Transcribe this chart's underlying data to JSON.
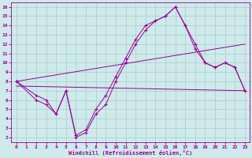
{
  "xlabel": "Windchill (Refroidissement éolien,°C)",
  "bg_color": "#ceeaea",
  "line_color": "#990099",
  "grid_color": "#aacccc",
  "xlim": [
    -0.5,
    23.5
  ],
  "ylim": [
    1.5,
    16.5
  ],
  "xticks": [
    0,
    1,
    2,
    3,
    4,
    5,
    6,
    7,
    8,
    9,
    10,
    11,
    12,
    13,
    14,
    15,
    16,
    17,
    18,
    19,
    20,
    21,
    22,
    23
  ],
  "yticks": [
    2,
    3,
    4,
    5,
    6,
    7,
    8,
    9,
    10,
    11,
    12,
    13,
    14,
    15,
    16
  ],
  "line1_x": [
    0,
    23
  ],
  "line1_y": [
    8,
    12
  ],
  "line2_x": [
    0,
    23
  ],
  "line2_y": [
    7.5,
    7.0
  ],
  "curve1_x": [
    0,
    2,
    3,
    4,
    5,
    6,
    7,
    8,
    9,
    10,
    11,
    12,
    13,
    14,
    15,
    16,
    17,
    18,
    19,
    20,
    21,
    22,
    23
  ],
  "curve1_y": [
    8,
    6.5,
    6.0,
    4.5,
    7.0,
    2.2,
    2.8,
    5.0,
    6.5,
    8.5,
    10.5,
    12.5,
    14.0,
    14.5,
    15.0,
    16.0,
    14.0,
    12.0,
    10.0,
    9.5,
    10.0,
    9.5,
    7.0
  ],
  "curve2_x": [
    0,
    2,
    3,
    4,
    5,
    6,
    7,
    8,
    9,
    10,
    11,
    12,
    13,
    14,
    15,
    16,
    17,
    18,
    19,
    20,
    21,
    22,
    23
  ],
  "curve2_y": [
    8,
    6.0,
    5.5,
    4.5,
    7.0,
    2.0,
    2.5,
    4.5,
    5.5,
    8.0,
    10.0,
    12.0,
    13.5,
    14.5,
    15.0,
    16.0,
    14.0,
    11.5,
    10.0,
    9.5,
    10.0,
    9.5,
    7.0
  ]
}
